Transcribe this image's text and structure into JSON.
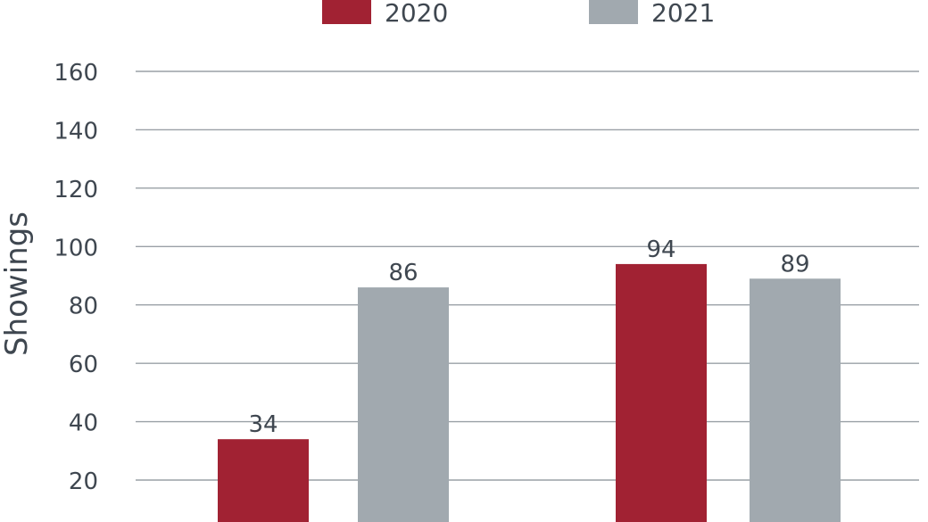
{
  "chart_data": {
    "type": "bar",
    "title": "",
    "xlabel": "",
    "ylabel": "Showings",
    "ylim": [
      0,
      160
    ],
    "visible_ylim": [
      13,
      160
    ],
    "yticks": [
      20,
      40,
      60,
      80,
      100,
      120,
      140,
      160
    ],
    "grid": true,
    "legend_position": "top-center",
    "categories": [
      "",
      ""
    ],
    "series": [
      {
        "name": "2020",
        "color": "#A12233",
        "values": [
          34,
          94
        ]
      },
      {
        "name": "2021",
        "color": "#A1A9AF",
        "values": [
          86,
          89
        ]
      }
    ]
  }
}
